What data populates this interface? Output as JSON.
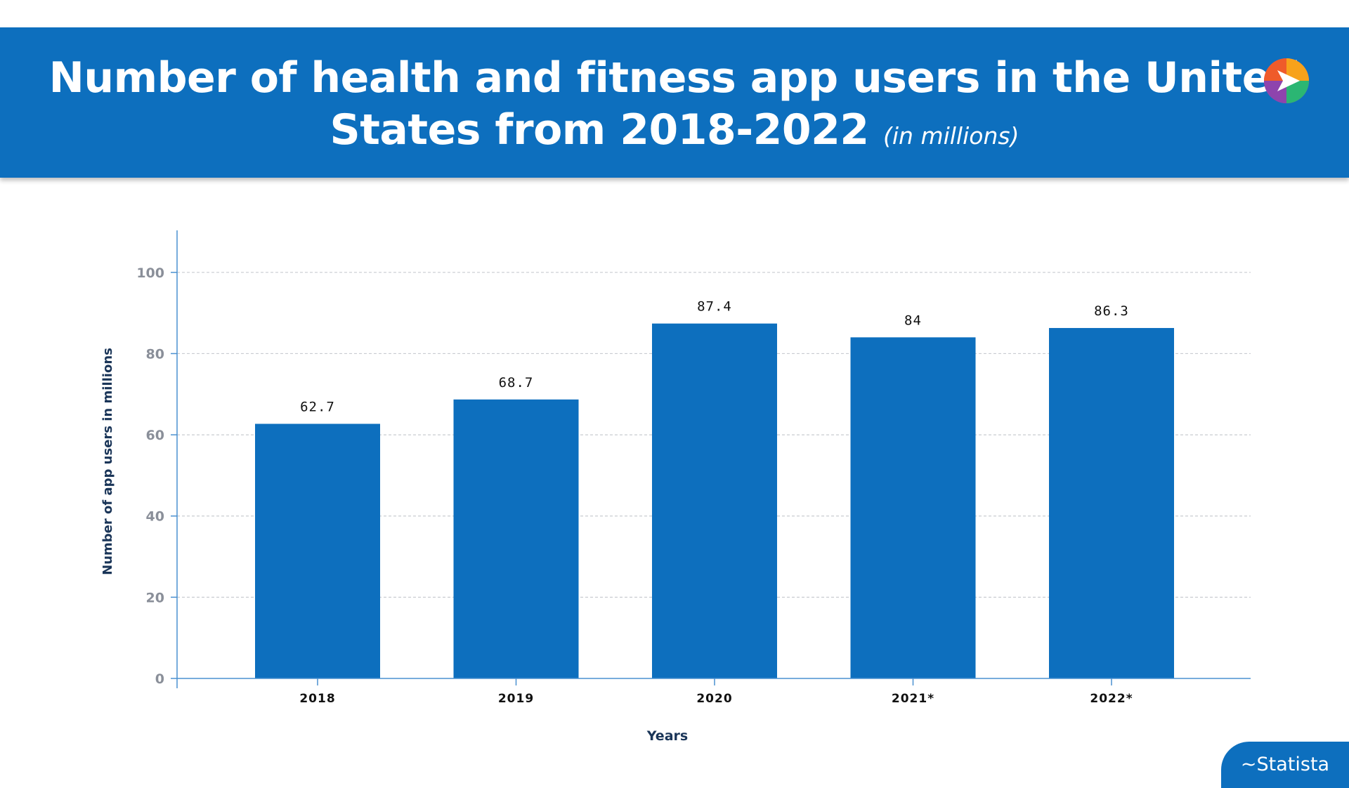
{
  "header": {
    "title_main": "Number of health and fitness app users in the United States from 2018-2022",
    "title_unit": "(in millions)"
  },
  "colors": {
    "banner": "#0d6fbe",
    "bar": "#0d6fbe",
    "axis_title": "#1a3558",
    "tick_label": "#8a8f99",
    "grid": "#c9ccd1"
  },
  "logo": {
    "icon": "play-arrow-logo-icon"
  },
  "source": {
    "label": "~Statista"
  },
  "chart_data": {
    "type": "bar",
    "categories": [
      "2018",
      "2019",
      "2020",
      "2021*",
      "2022*"
    ],
    "values": [
      62.7,
      68.7,
      87.4,
      84,
      86.3
    ],
    "data_labels": [
      "62.7",
      "68.7",
      "87.4",
      "84",
      "86.3"
    ],
    "title": "Number of health and fitness app users in the United States from 2018-2022 (in millions)",
    "xlabel": "Years",
    "ylabel": "Number of app users in millions",
    "ylim": [
      0,
      110
    ],
    "yticks": [
      0,
      20,
      40,
      60,
      80,
      100
    ],
    "grid": true,
    "legend": "none"
  }
}
